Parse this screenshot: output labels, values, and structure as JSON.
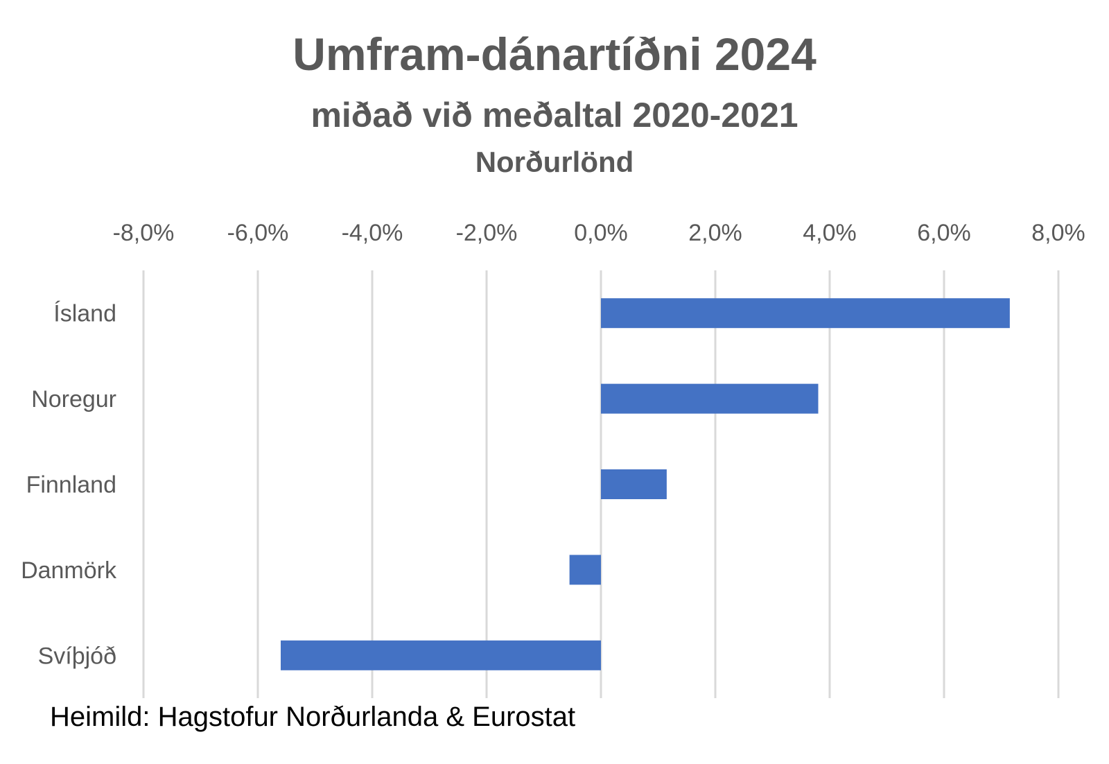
{
  "chart_data": {
    "type": "bar",
    "orientation": "horizontal",
    "title": "Umfram-dánartíðni 2024",
    "subtitle": "miðað við meðaltal 2020-2021",
    "subtitle2": "Norðurlönd",
    "categories": [
      "Ísland",
      "Noregur",
      "Finnland",
      "Danmörk",
      "Svíþjóð"
    ],
    "values": [
      7.15,
      3.8,
      1.15,
      -0.55,
      -5.6
    ],
    "xlim": [
      -8,
      8
    ],
    "xticks": [
      -8,
      -6,
      -4,
      -2,
      0,
      2,
      4,
      6,
      8
    ],
    "xtick_labels": [
      "-8,0%",
      "-6,0%",
      "-4,0%",
      "-2,0%",
      "0,0%",
      "2,0%",
      "4,0%",
      "6,0%",
      "8,0%"
    ],
    "x_axis_position": "top",
    "grid": true,
    "bar_color": "#4472C4",
    "grid_color": "#D9D9D9",
    "text_color": "#595959"
  },
  "source_text": "Heimild: Hagstofur Norðurlanda & Eurostat"
}
